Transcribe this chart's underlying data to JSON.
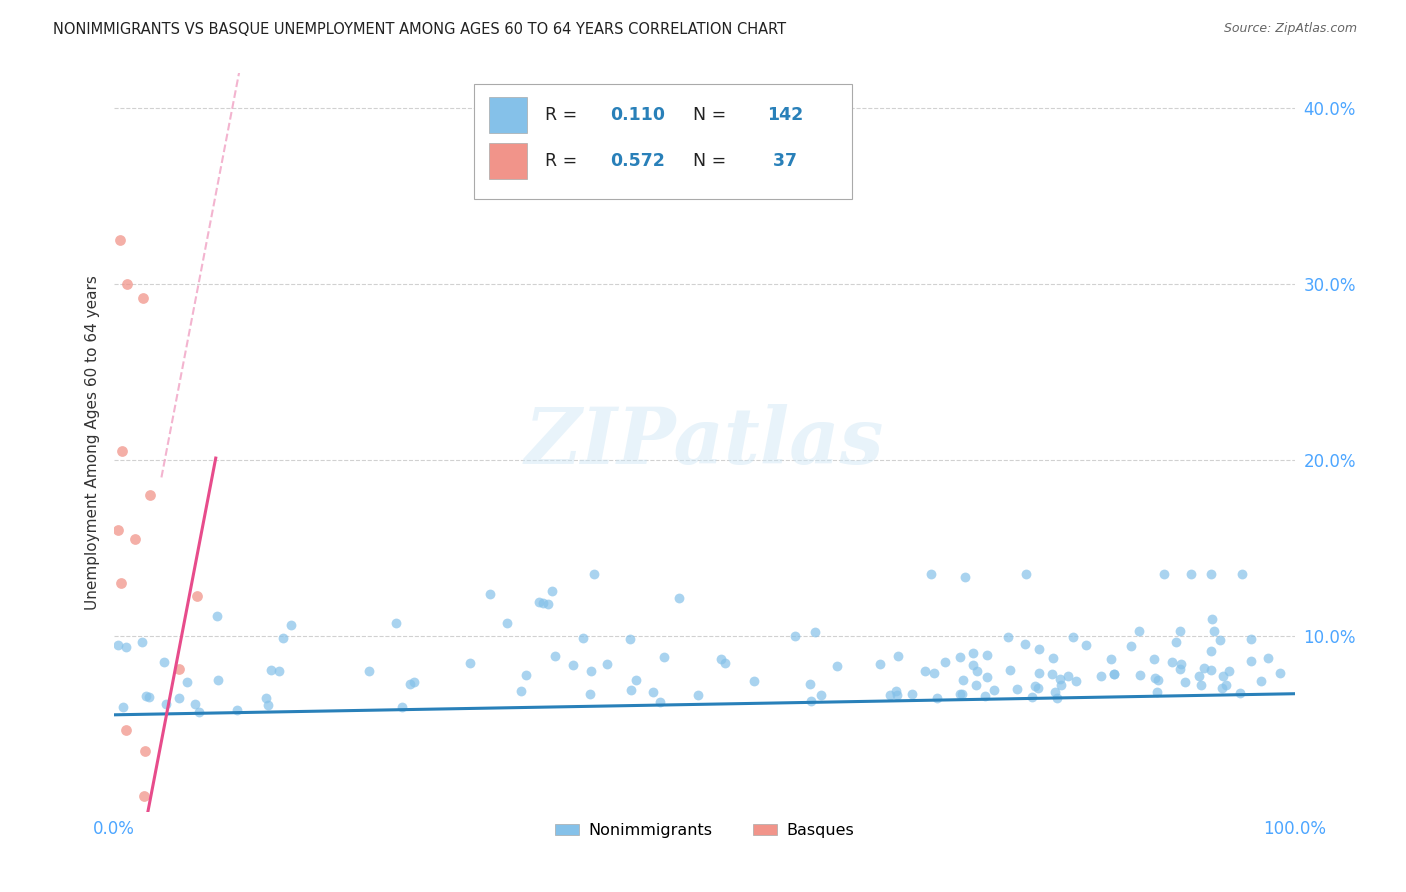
{
  "title": "NONIMMIGRANTS VS BASQUE UNEMPLOYMENT AMONG AGES 60 TO 64 YEARS CORRELATION CHART",
  "source": "Source: ZipAtlas.com",
  "ylabel": "Unemployment Among Ages 60 to 64 years",
  "watermark": "ZIPatlas",
  "blue_R": 0.11,
  "blue_N": 142,
  "pink_R": 0.572,
  "pink_N": 37,
  "blue_color": "#85c1e9",
  "pink_color": "#f1948a",
  "blue_line_color": "#2980b9",
  "pink_line_color": "#e74c8b",
  "pink_dash_color": "#f1a7c7",
  "background_color": "#ffffff",
  "grid_color": "#cccccc",
  "title_color": "#222222",
  "source_color": "#666666",
  "axis_tick_color": "#4da6ff",
  "xlim": [
    0.0,
    1.0
  ],
  "ylim": [
    0.0,
    0.42
  ],
  "xtick_positions": [
    0.0,
    1.0
  ],
  "xtick_labels": [
    "0.0%",
    "100.0%"
  ],
  "ytick_positions": [
    0.1,
    0.2,
    0.3,
    0.4
  ],
  "ytick_labels": [
    "10.0%",
    "20.0%",
    "30.0%",
    "40.0%"
  ],
  "blue_intercept": 0.055,
  "blue_slope": 0.012,
  "pink_intercept": -0.1,
  "pink_slope": 3.5,
  "pink_dash_intercept": 0.05,
  "pink_dash_slope": 3.5
}
